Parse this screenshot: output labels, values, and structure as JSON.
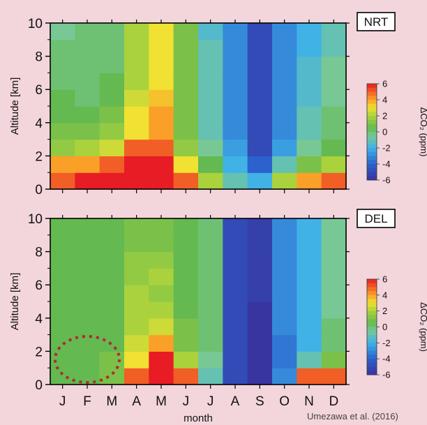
{
  "chart_data": [
    {
      "type": "heatmap",
      "panel_label": "NRT",
      "ylabel": "Altitude [km]",
      "xlabel": "",
      "ylim": [
        0,
        10
      ],
      "yticks": [
        0,
        2,
        4,
        6,
        8,
        10
      ],
      "months": [
        "J",
        "F",
        "M",
        "A",
        "M",
        "J",
        "J",
        "A",
        "S",
        "O",
        "N",
        "D"
      ],
      "colorbar": {
        "title": "ΔCO₂ (ppm)",
        "range": [
          -6,
          6
        ],
        "ticks": [
          "6",
          "4",
          "2",
          "0",
          "-2",
          "-4",
          "-6"
        ]
      },
      "contour_step_ppm": 2,
      "cells_altitude_km": [
        1,
        2,
        3,
        4,
        5,
        6,
        7,
        8,
        9,
        10
      ],
      "cells_by_month_ppm": [
        [
          5,
          4,
          1.5,
          1,
          0.5,
          0.5,
          0,
          0,
          0,
          -0.5
        ],
        [
          6,
          4,
          2,
          1,
          0.5,
          0,
          0,
          0,
          0,
          0
        ],
        [
          6,
          5,
          2.5,
          1.5,
          1,
          0.5,
          0.5,
          0,
          0,
          0
        ],
        [
          6,
          6,
          5,
          3,
          3,
          2.5,
          2,
          2,
          2,
          2
        ],
        [
          6,
          6,
          5,
          4,
          4,
          3.5,
          3,
          3,
          3,
          3
        ],
        [
          5,
          3,
          1.5,
          1,
          1,
          1,
          1,
          1,
          1,
          1
        ],
        [
          2,
          0.5,
          -0.5,
          -1,
          -1,
          -1,
          -1,
          -1,
          -1,
          -1.5
        ],
        [
          -1,
          -2,
          -2.5,
          -3,
          -3,
          -3,
          -3,
          -3,
          -3,
          -3
        ],
        [
          -2,
          -4,
          -5,
          -5,
          -5,
          -5,
          -5,
          -5,
          -5,
          -5
        ],
        [
          2,
          -1,
          -2.5,
          -3,
          -3,
          -3,
          -3,
          -3,
          -3,
          -3
        ],
        [
          4,
          1,
          -0.5,
          -1,
          -1,
          -1.5,
          -1.5,
          -1.5,
          -2,
          -2
        ],
        [
          5,
          2,
          0.5,
          0,
          0,
          -0.5,
          -0.5,
          -0.5,
          -1,
          -1
        ]
      ]
    },
    {
      "type": "heatmap",
      "panel_label": "DEL",
      "ylabel": "Altitude [km]",
      "xlabel": "month",
      "ylim": [
        0,
        10
      ],
      "yticks": [
        0,
        2,
        4,
        6,
        8,
        10
      ],
      "months": [
        "J",
        "F",
        "M",
        "A",
        "M",
        "J",
        "J",
        "A",
        "S",
        "O",
        "N",
        "D"
      ],
      "colorbar": {
        "title": "ΔCO₂ (ppm)",
        "range": [
          -6,
          6
        ],
        "ticks": [
          "6",
          "4",
          "2",
          "0",
          "-2",
          "-4",
          "-6"
        ]
      },
      "contour_step_ppm": 2,
      "cells_altitude_km": [
        1,
        2,
        3,
        4,
        5,
        6,
        7,
        8,
        9,
        10
      ],
      "cells_by_month_ppm": [
        [
          0.5,
          0.5,
          0.5,
          0.5,
          0.5,
          0.5,
          0.5,
          0.5,
          0.5,
          0.5
        ],
        [
          0.5,
          0.5,
          0.5,
          0.5,
          0.5,
          0.5,
          0.5,
          0.5,
          0.5,
          0.5
        ],
        [
          1,
          1,
          0.5,
          0.5,
          0.5,
          0.5,
          0.5,
          0.5,
          0.5,
          0.5
        ],
        [
          5,
          3,
          2.5,
          2,
          2,
          2,
          1.5,
          1.5,
          1,
          1
        ],
        [
          6,
          6,
          4,
          2.5,
          2,
          1.5,
          2,
          1.5,
          1,
          1
        ],
        [
          5,
          2,
          1,
          1,
          0.5,
          0.5,
          0.5,
          0.5,
          0.5,
          0.5
        ],
        [
          -1,
          -0.5,
          0,
          0,
          0,
          0,
          0,
          0,
          0,
          0
        ],
        [
          -5,
          -5,
          -5,
          -5,
          -5,
          -5,
          -5,
          -5,
          -5,
          -5
        ],
        [
          -6,
          -6,
          -6,
          -6,
          -6,
          -5.5,
          -5.5,
          -5.5,
          -5.5,
          -5.5
        ],
        [
          -3,
          -3.5,
          -3.5,
          -3,
          -3,
          -3,
          -3,
          -3,
          -3,
          -3
        ],
        [
          5,
          -1,
          -2,
          -2,
          -2,
          -2,
          -2,
          -2,
          -2,
          -2
        ],
        [
          5,
          1,
          0,
          0,
          -0.5,
          -0.5,
          -0.5,
          -0.5,
          -0.5,
          -0.5
        ]
      ]
    }
  ],
  "credit": "Umezawa et al. (2016)"
}
